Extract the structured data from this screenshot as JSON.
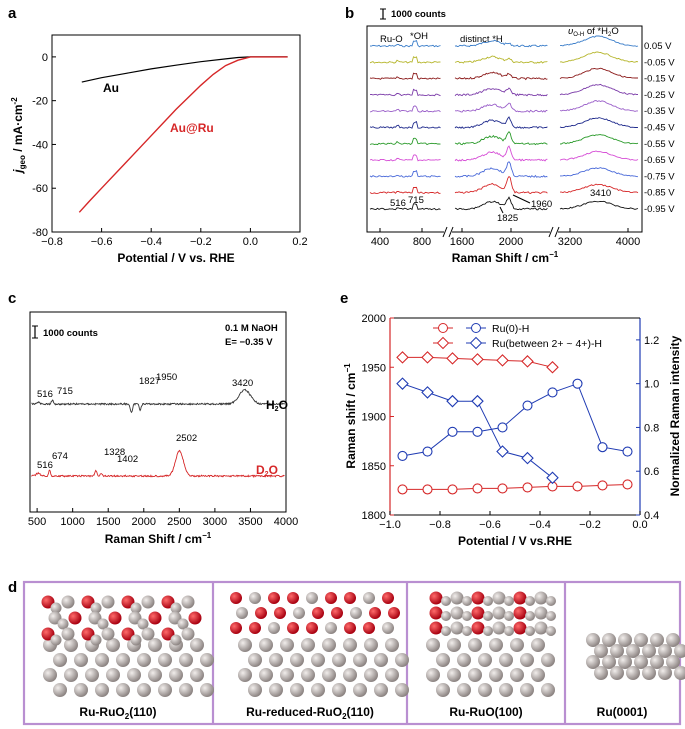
{
  "panels": {
    "a": "a",
    "b": "b",
    "c": "c",
    "d": "d",
    "e": "e"
  },
  "chart_data": [
    {
      "id": "a",
      "type": "line",
      "xlabel": "Potential / V vs. RHE",
      "ylabel_main": "j",
      "ylabel_sub": "geo",
      "ylabel_unit": " / mA·cm",
      "ylabel_sup": "-2",
      "xlim": [
        -0.8,
        0.2
      ],
      "ylim": [
        -80,
        10
      ],
      "xticks": [
        "−0.8",
        "−0.6",
        "−0.4",
        "−0.2",
        "0.0",
        "0.2"
      ],
      "yticks": [
        "0",
        "-20",
        "-40",
        "-60",
        "-80"
      ],
      "series": [
        {
          "name": "Au",
          "color": "#000000",
          "x": [
            -0.68,
            -0.6,
            -0.5,
            -0.4,
            -0.3,
            -0.2,
            -0.1,
            -0.05,
            0,
            0.05,
            0.15
          ],
          "y": [
            -11.5,
            -9.5,
            -7.5,
            -5.5,
            -3.8,
            -2.2,
            -0.9,
            -0.3,
            0,
            0,
            0
          ]
        },
        {
          "name": "Au@Ru",
          "color": "#d62728",
          "x": [
            -0.69,
            -0.65,
            -0.6,
            -0.5,
            -0.4,
            -0.3,
            -0.2,
            -0.15,
            -0.1,
            -0.05,
            0,
            0.05,
            0.15
          ],
          "y": [
            -71,
            -66,
            -60,
            -48,
            -36,
            -24,
            -13,
            -8,
            -4,
            -1.5,
            0,
            0,
            0
          ]
        }
      ]
    },
    {
      "id": "b",
      "type": "line",
      "title_scale": "1000 counts",
      "xlabel": "Raman Shift / cm",
      "xlabel_sup": "−1",
      "xticks": [
        "400",
        "800",
        "1600",
        "2000",
        "3200",
        "4000"
      ],
      "annotations": [
        "Ru-O",
        "*OH",
        "distinct *H",
        "υ",
        "O-H",
        " of *H",
        "2",
        "O",
        "516",
        "715",
        "1825",
        "1960",
        "3410"
      ],
      "potentials": [
        "0.05 V",
        "-0.05 V",
        "-0.15 V",
        "-0.25 V",
        "-0.35 V",
        "-0.45 V",
        "-0.55 V",
        "-0.65 V",
        "-0.75 V",
        "-0.85 V",
        "-0.95 V"
      ],
      "colors": [
        "#3a7dc9",
        "#b5b52a",
        "#8b1a1a",
        "#7a3aa8",
        "#9a5fc9",
        "#1f2a8c",
        "#2a9a2a",
        "#d64fd6",
        "#4a6ad9",
        "#d62728",
        "#111111"
      ],
      "h_intensity": [
        0.1,
        0.18,
        0.25,
        0.35,
        0.45,
        0.55,
        0.65,
        0.75,
        0.85,
        0.95,
        0.65
      ],
      "water_intensity": [
        0.8,
        0.82,
        0.85,
        0.85,
        0.85,
        0.8,
        0.75,
        0.72,
        0.7,
        0.68,
        0.65
      ]
    },
    {
      "id": "c",
      "type": "line",
      "title_scale": "1000 counts",
      "cond1": "0.1 M NaOH",
      "cond2": "E= −0.35 V",
      "xlabel": "Raman Shift / cm",
      "xlabel_sup": "−1",
      "xlim": [
        400,
        4000
      ],
      "xticks": [
        "500",
        "1000",
        "1500",
        "2000",
        "2500",
        "3000",
        "3500",
        "4000"
      ],
      "series": [
        {
          "name": "H",
          "name_sub": "2",
          "name_end": "O",
          "color": "#333333",
          "peaks": [
            [
              "516",
              516
            ],
            [
              "715",
              715
            ],
            [
              "1827",
              1827
            ],
            [
              "1950",
              1950
            ],
            [
              "3420",
              3420
            ]
          ]
        },
        {
          "name": "D",
          "name_sub": "2",
          "name_end": "O",
          "color": "#d62728",
          "peaks": [
            [
              "516",
              516
            ],
            [
              "674",
              674
            ],
            [
              "1328",
              1328
            ],
            [
              "1402",
              1402
            ],
            [
              "2502",
              2502
            ]
          ]
        }
      ]
    },
    {
      "id": "e",
      "type": "scatter",
      "xlabel": "Potential / V vs.RHE",
      "ylabel_left": "Raman shift / cm",
      "ylabel_left_sup": "−1",
      "ylabel_right": "Normalized Raman intensity",
      "xlim": [
        -1.0,
        0.0
      ],
      "ylim_left": [
        1800,
        2000
      ],
      "ylim_right": [
        0.4,
        1.3
      ],
      "xticks": [
        "−1.0",
        "−0.8",
        "−0.6",
        "−0.4",
        "−0.2",
        "0.0"
      ],
      "yticks_left": [
        "1800",
        "1850",
        "1900",
        "1950",
        "2000"
      ],
      "yticks_right": [
        "0.4",
        "0.6",
        "0.8",
        "1.0",
        "1.2"
      ],
      "legend": [
        "Ru(0)-H",
        "Ru(between 2+ ~ 4+)-H"
      ],
      "red_circle": {
        "x": [
          -0.95,
          -0.85,
          -0.75,
          -0.65,
          -0.55,
          -0.45,
          -0.35,
          -0.25,
          -0.15,
          -0.05
        ],
        "y": [
          1826,
          1826,
          1826,
          1827,
          1827,
          1828,
          1829,
          1829,
          1830,
          1831
        ]
      },
      "red_diamond": {
        "x": [
          -0.95,
          -0.85,
          -0.75,
          -0.65,
          -0.55,
          -0.45,
          -0.35
        ],
        "y": [
          1960,
          1960,
          1959,
          1958,
          1957,
          1956,
          1950
        ]
      },
      "blue_circle": {
        "x": [
          -0.95,
          -0.85,
          -0.75,
          -0.65,
          -0.55,
          -0.45,
          -0.35,
          -0.25,
          -0.15,
          -0.05
        ],
        "y": [
          0.67,
          0.69,
          0.78,
          0.78,
          0.8,
          0.9,
          0.96,
          1.0,
          0.71,
          0.69
        ]
      },
      "blue_diamond": {
        "x": [
          -0.95,
          -0.85,
          -0.75,
          -0.65,
          -0.55,
          -0.45,
          -0.35
        ],
        "y": [
          1.0,
          0.96,
          0.92,
          0.92,
          0.69,
          0.66,
          0.57
        ]
      }
    }
  ],
  "structures": [
    {
      "label_pre": "Ru-RuO",
      "label_sub": "2",
      "label_post": "(110)"
    },
    {
      "label_pre": "Ru-reduced-RuO",
      "label_sub": "2",
      "label_post": "(110)"
    },
    {
      "label_pre": "Ru-RuO(100)",
      "label_sub": "",
      "label_post": ""
    },
    {
      "label_pre": "Ru(0001)",
      "label_sub": "",
      "label_post": ""
    }
  ],
  "colors": {
    "red": "#d62728",
    "blue": "#1f3bb3",
    "purple": "#b98fd1",
    "ru_atom": "#b8b0ae",
    "o_atom": "#c8101e"
  }
}
